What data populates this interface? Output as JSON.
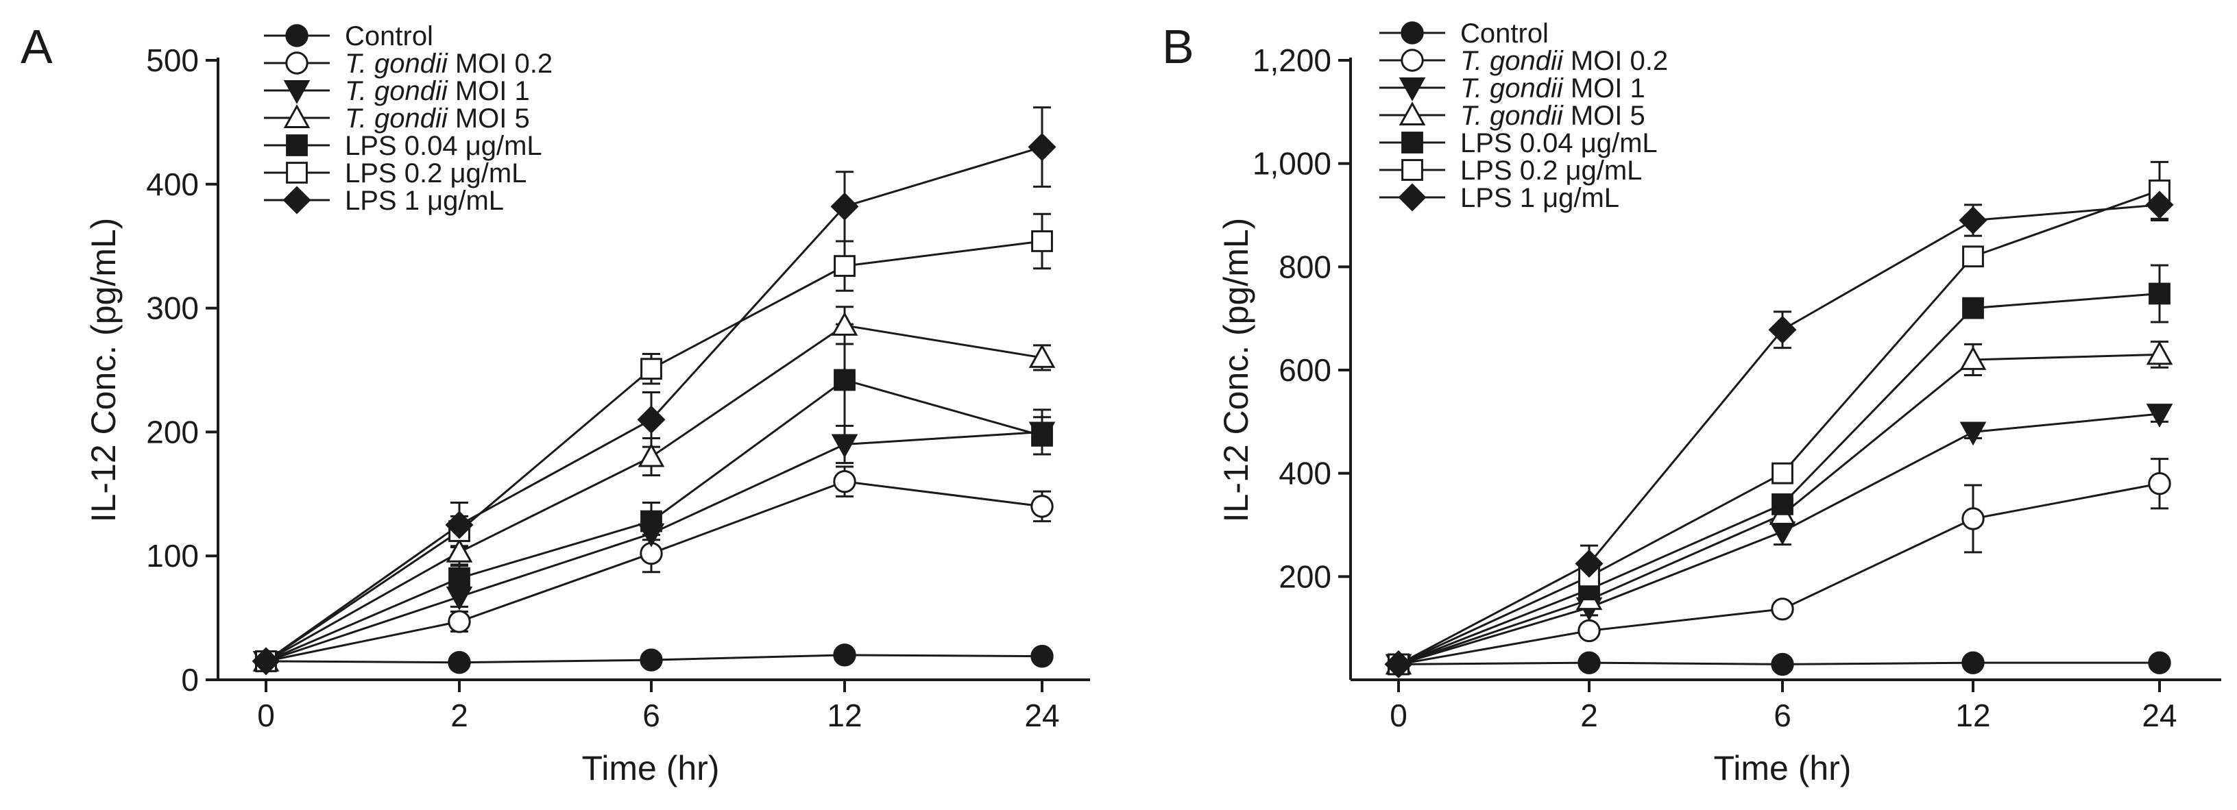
{
  "figure": {
    "panels": [
      "A",
      "B"
    ]
  },
  "legend": [
    {
      "key": "control",
      "marker": "filled-circle",
      "prefix": "",
      "italic": "",
      "suffix": "Control"
    },
    {
      "key": "tg02",
      "marker": "open-circle",
      "prefix": "",
      "italic": "T. gondii",
      "suffix": " MOI 0.2"
    },
    {
      "key": "tg1",
      "marker": "filled-triangle-down",
      "prefix": "",
      "italic": "T. gondii",
      "suffix": " MOI 1"
    },
    {
      "key": "tg5",
      "marker": "open-triangle-up",
      "prefix": "",
      "italic": "T. gondii",
      "suffix": " MOI 5"
    },
    {
      "key": "lps004",
      "marker": "filled-square",
      "prefix": "LPS 0.04 ",
      "italic": "",
      "suffix": "μg/mL"
    },
    {
      "key": "lps02",
      "marker": "open-square",
      "prefix": "LPS 0.2 ",
      "italic": "",
      "suffix": "μg/mL"
    },
    {
      "key": "lps1",
      "marker": "filled-diamond",
      "prefix": "LPS 1 ",
      "italic": "",
      "suffix": "μg/mL"
    }
  ],
  "chart_data": [
    {
      "panel": "A",
      "type": "line",
      "xlabel": "Time (hr)",
      "ylabel": "IL-12 Conc. (pg/mL)",
      "categories": [
        "0",
        "2",
        "6",
        "12",
        "24"
      ],
      "ylim": [
        0,
        500
      ],
      "yticks": [
        0,
        100,
        200,
        300,
        400,
        500
      ],
      "ytick_labels": [
        "0",
        "100",
        "200",
        "300",
        "400",
        "500"
      ],
      "series": [
        {
          "name": "Control",
          "values": [
            15,
            14,
            16,
            20,
            19
          ],
          "errors": [
            2,
            2,
            2,
            3,
            3
          ]
        },
        {
          "name": "T. gondii MOI 0.2",
          "values": [
            15,
            47,
            102,
            160,
            140
          ],
          "errors": [
            2,
            8,
            15,
            12,
            12
          ]
        },
        {
          "name": "T. gondii MOI 1",
          "values": [
            15,
            67,
            118,
            190,
            200
          ],
          "errors": [
            2,
            8,
            12,
            15,
            18
          ]
        },
        {
          "name": "T. gondii MOI 5",
          "values": [
            15,
            103,
            180,
            286,
            260
          ],
          "errors": [
            2,
            10,
            15,
            15,
            10
          ]
        },
        {
          "name": "LPS 0.04 μg/mL",
          "values": [
            15,
            82,
            128,
            242,
            197
          ],
          "errors": [
            2,
            10,
            15,
            45,
            15
          ]
        },
        {
          "name": "LPS 0.2 μg/mL",
          "values": [
            15,
            120,
            251,
            334,
            354
          ],
          "errors": [
            2,
            12,
            12,
            20,
            22
          ]
        },
        {
          "name": "LPS 1 μg/mL",
          "values": [
            15,
            125,
            210,
            382,
            430
          ],
          "errors": [
            2,
            18,
            22,
            28,
            32
          ]
        }
      ]
    },
    {
      "panel": "B",
      "type": "line",
      "xlabel": "Time (hr)",
      "ylabel": "IL-12 Conc. (pg/mL)",
      "categories": [
        "0",
        "2",
        "6",
        "12",
        "24"
      ],
      "ylim": [
        0,
        1200
      ],
      "yticks": [
        200,
        400,
        600,
        800,
        1000,
        1200
      ],
      "ytick_labels": [
        "200",
        "400",
        "600",
        "800",
        "1,000",
        "1,200"
      ],
      "series": [
        {
          "name": "Control",
          "values": [
            30,
            33,
            30,
            33,
            33
          ],
          "errors": [
            5,
            5,
            5,
            5,
            5
          ]
        },
        {
          "name": "T. gondii MOI 0.2",
          "values": [
            30,
            95,
            137,
            312,
            380
          ],
          "errors": [
            5,
            12,
            10,
            65,
            48
          ]
        },
        {
          "name": "T. gondii MOI 1",
          "values": [
            30,
            140,
            287,
            480,
            515
          ],
          "errors": [
            5,
            15,
            25,
            12,
            15
          ]
        },
        {
          "name": "T. gondii MOI 5",
          "values": [
            30,
            155,
            320,
            620,
            630
          ],
          "errors": [
            5,
            15,
            20,
            30,
            25
          ]
        },
        {
          "name": "LPS 0.04 μg/mL",
          "values": [
            30,
            175,
            340,
            720,
            748
          ],
          "errors": [
            5,
            15,
            18,
            18,
            55
          ]
        },
        {
          "name": "LPS 0.2 μg/mL",
          "values": [
            30,
            200,
            400,
            820,
            948
          ],
          "errors": [
            5,
            15,
            18,
            15,
            55
          ]
        },
        {
          "name": "LPS 1 μg/mL",
          "values": [
            30,
            225,
            678,
            890,
            920
          ],
          "errors": [
            5,
            35,
            35,
            30,
            30
          ]
        }
      ]
    }
  ]
}
